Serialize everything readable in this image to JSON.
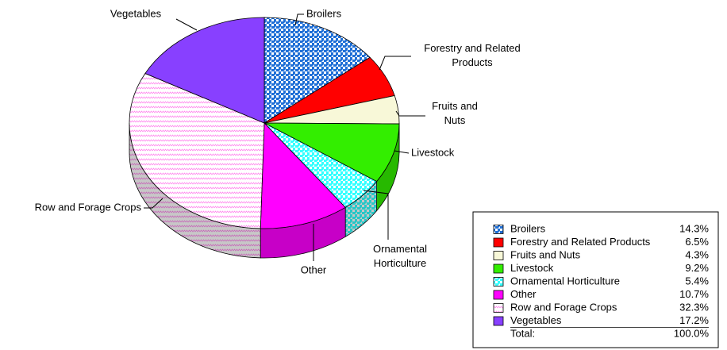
{
  "chart_data": {
    "type": "pie",
    "categories": [
      "Broilers",
      "Forestry and Related Products",
      "Fruits and Nuts",
      "Livestock",
      "Ornamental Horticulture",
      "Other",
      "Row and Forage Crops",
      "Vegetables"
    ],
    "values": [
      14.3,
      6.5,
      4.3,
      9.2,
      5.4,
      10.7,
      32.3,
      17.2
    ],
    "value_labels": [
      "14.3%",
      "6.5%",
      "4.3%",
      "9.2%",
      "5.4%",
      "10.7%",
      "32.3%",
      "17.2%"
    ],
    "colors": [
      "#1f6fd6",
      "#ff0000",
      "#f8f8d8",
      "#33ee00",
      "#33ffff",
      "#ff00ff",
      "#ff88ee",
      "#8840ff"
    ],
    "patterns": [
      "checker",
      "solid",
      "solid",
      "solid",
      "checker",
      "solid",
      "zigzag",
      "solid"
    ],
    "total": {
      "label": "Total:",
      "value": 100,
      "value_label": "100.0%"
    },
    "legend": "bottom-right"
  }
}
